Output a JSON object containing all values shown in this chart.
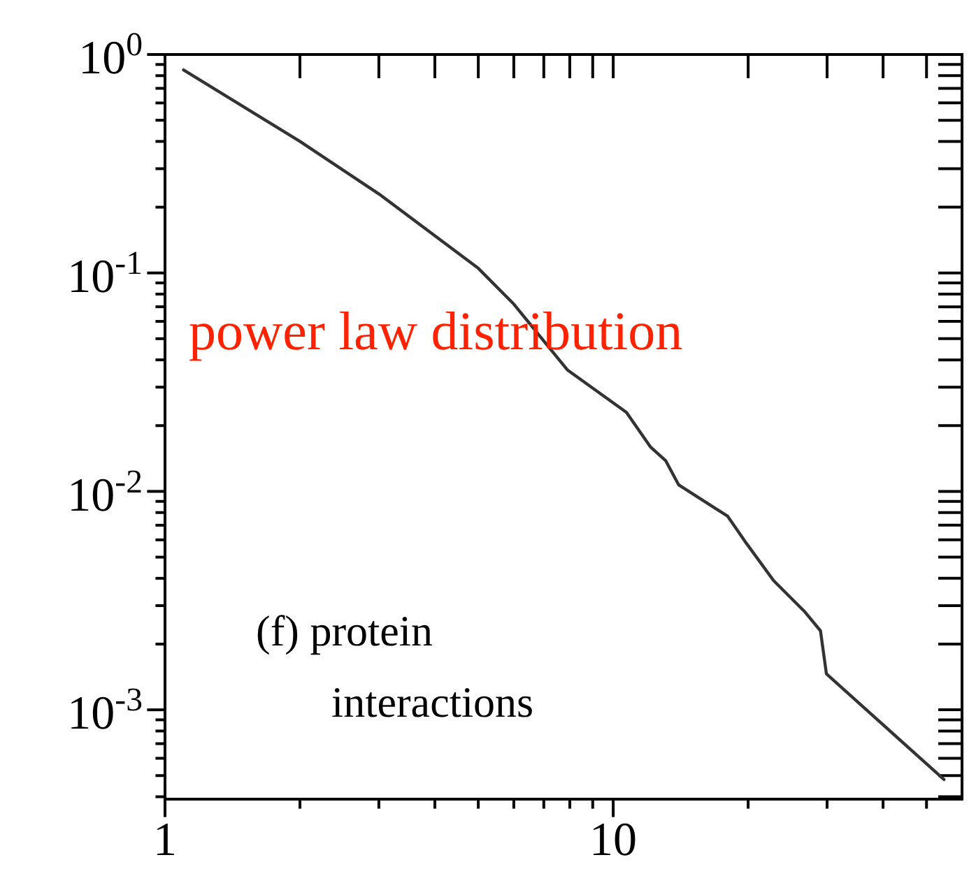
{
  "chart_data": {
    "type": "line",
    "x": [
      1.1,
      2,
      3,
      5,
      6,
      7.9,
      10.7,
      12.1,
      13.1,
      14,
      18,
      19.8,
      22.8,
      26.8,
      29,
      29.9,
      54.7
    ],
    "series": [
      {
        "color": "#333333",
        "values": [
          0.85,
          0.4,
          0.23,
          0.105,
          0.072,
          0.036,
          0.023,
          0.016,
          0.0138,
          0.0107,
          0.0077,
          0.0058,
          0.0039,
          0.0028,
          0.0023,
          0.00146,
          0.00048
        ]
      }
    ],
    "log": "xy",
    "grid": false,
    "marker": "none",
    "line_style": "solid",
    "xlim": [
      1,
      60
    ],
    "ylim": [
      0.00039,
      1
    ],
    "xticks": [
      1,
      {
        "value": 2,
        "label": null
      },
      {
        "value": 3,
        "label": null
      },
      {
        "value": 4,
        "label": null
      },
      {
        "value": 5,
        "label": null
      },
      {
        "value": 6,
        "label": null
      },
      {
        "value": 7,
        "label": null
      },
      {
        "value": 8,
        "label": null
      },
      {
        "value": 9,
        "label": null
      },
      10,
      {
        "value": 20,
        "label": null
      },
      {
        "value": 30,
        "label": null
      },
      {
        "value": 40,
        "label": null
      },
      {
        "value": 50,
        "label": null
      }
    ],
    "yticks": [
      {
        "value": 1,
        "label": "10$^{0}$"
      },
      {
        "value": 0.9,
        "label": null
      },
      {
        "value": 0.8,
        "label": null
      },
      {
        "value": 0.7,
        "label": null
      },
      {
        "value": 0.6,
        "label": null
      },
      {
        "value": 0.5,
        "label": null
      },
      {
        "value": 0.4,
        "label": null
      },
      {
        "value": 0.3,
        "label": null
      },
      {
        "value": 0.2,
        "label": null
      },
      {
        "value": 0.1,
        "label": "10$^{-1}$"
      },
      {
        "value": 0.09,
        "label": null
      },
      {
        "value": 0.08,
        "label": null
      },
      {
        "value": 0.07,
        "label": null
      },
      {
        "value": 0.06,
        "label": null
      },
      {
        "value": 0.05,
        "label": null
      },
      {
        "value": 0.04,
        "label": null
      },
      {
        "value": 0.03,
        "label": null
      },
      {
        "value": 0.02,
        "label": null
      },
      {
        "value": 0.01,
        "label": "10$^{-2}$"
      },
      {
        "value": 0.009,
        "label": null
      },
      {
        "value": 0.008,
        "label": null
      },
      {
        "value": 0.007,
        "label": null
      },
      {
        "value": 0.006,
        "label": null
      },
      {
        "value": 0.005,
        "label": null
      },
      {
        "value": 0.004,
        "label": null
      },
      {
        "value": 0.003,
        "label": null
      },
      {
        "value": 0.002,
        "label": null
      },
      {
        "value": 0.001,
        "label": "10$^{-3}$"
      },
      {
        "value": 0.0009,
        "label": null
      },
      {
        "value": 0.0008,
        "label": null
      },
      {
        "value": 0.0007,
        "label": null
      },
      {
        "value": 0.0006,
        "label": null
      },
      {
        "value": 0.0005,
        "label": null
      },
      {
        "value": 0.0004,
        "label": null
      }
    ],
    "annotations": [
      "power law distribution",
      "(f) protein interactions"
    ]
  }
}
